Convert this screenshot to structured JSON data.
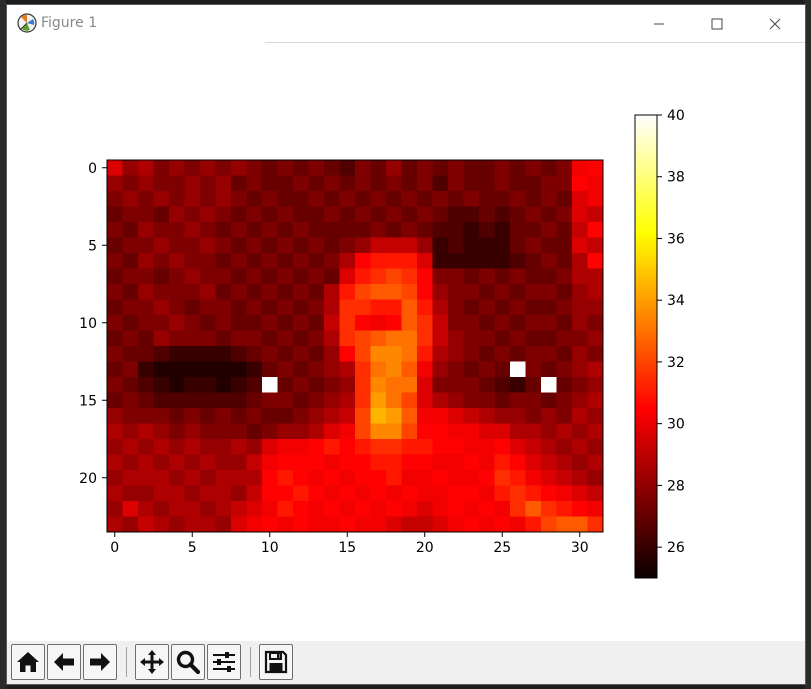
{
  "window": {
    "title": "Figure 1"
  },
  "toolbar": {
    "buttons": [
      {
        "name": "home-button",
        "icon": "home-icon"
      },
      {
        "name": "back-button",
        "icon": "arrow-left-icon"
      },
      {
        "name": "forward-button",
        "icon": "arrow-right-icon"
      },
      {
        "name": "pan-button",
        "icon": "move-icon"
      },
      {
        "name": "zoom-button",
        "icon": "magnifier-icon"
      },
      {
        "name": "configure-subplots-button",
        "icon": "sliders-icon"
      },
      {
        "name": "save-button",
        "icon": "floppy-icon"
      }
    ]
  },
  "chart_data": {
    "type": "heatmap",
    "colormap": "hot",
    "rows": 24,
    "cols": 32,
    "xticks": [
      0,
      5,
      10,
      15,
      20,
      25,
      30
    ],
    "yticks": [
      0,
      5,
      10,
      15,
      20
    ],
    "colorbar": {
      "ticks": [
        26,
        28,
        30,
        32,
        34,
        36,
        38,
        40
      ],
      "vmin": 25,
      "vmax": 40
    },
    "values": [
      [
        29.5,
        28,
        28.5,
        27.5,
        28,
        27.5,
        28,
        27.5,
        28,
        27.5,
        27,
        27.5,
        27,
        27.5,
        27,
        26.5,
        27.5,
        27,
        28,
        27,
        27.5,
        27,
        27.5,
        27,
        27,
        27.5,
        27,
        27.5,
        27,
        27.5,
        30,
        30.5
      ],
      [
        28,
        27.5,
        28,
        27.5,
        27.5,
        28,
        27.5,
        28,
        27,
        27.5,
        27,
        27,
        27.5,
        27,
        27.5,
        27,
        27.5,
        27,
        27.5,
        27,
        27.5,
        26.5,
        27.5,
        27,
        27,
        27.5,
        27,
        27,
        27.5,
        27.5,
        30.5,
        30
      ],
      [
        27.5,
        28,
        27.5,
        28,
        27.5,
        28,
        27.5,
        28,
        27.5,
        27,
        27.5,
        27,
        27,
        27.5,
        27,
        27.5,
        27,
        27.5,
        27,
        27.5,
        27,
        27.5,
        27,
        27.5,
        27,
        27,
        27.5,
        27,
        27.5,
        27,
        29.5,
        30
      ],
      [
        27,
        27.5,
        27.5,
        27,
        28,
        27.5,
        28,
        27.5,
        27,
        27.5,
        27,
        27.5,
        27,
        27,
        27.5,
        27,
        27.5,
        27,
        27.5,
        27,
        27.5,
        27,
        26.5,
        26.5,
        27,
        26.5,
        27,
        27.5,
        27,
        27.5,
        29.5,
        29
      ],
      [
        27.5,
        27,
        28,
        27.5,
        27.5,
        28,
        27.5,
        27,
        27.5,
        27,
        27.5,
        27,
        27.5,
        27,
        27,
        27,
        27,
        27.5,
        27,
        27.5,
        27,
        26.5,
        26.5,
        26,
        26.5,
        26,
        27,
        27,
        27.5,
        27,
        29,
        30.5
      ],
      [
        27,
        27.5,
        27.5,
        28,
        27.5,
        27.5,
        28,
        27.5,
        27,
        27.5,
        27,
        27.5,
        27,
        27.5,
        27,
        27.5,
        28,
        29,
        29,
        29,
        28,
        26,
        26.5,
        26,
        26,
        26,
        27,
        27.5,
        27,
        27,
        29.5,
        29
      ],
      [
        27.5,
        27,
        28,
        27.5,
        28,
        27.5,
        27.5,
        27,
        27.5,
        27,
        27.5,
        27,
        27.5,
        27,
        27.5,
        28.5,
        30.5,
        31,
        31,
        31,
        29.5,
        26,
        26,
        26,
        26,
        26,
        26.5,
        27,
        27.5,
        27,
        28.5,
        30.5
      ],
      [
        27,
        27.5,
        27.5,
        27,
        27.5,
        28,
        27.5,
        27.5,
        27,
        27.5,
        27,
        27.5,
        27,
        27.5,
        27,
        29.5,
        31,
        31.5,
        32,
        31.5,
        30.5,
        27.5,
        27.5,
        27,
        27.5,
        27,
        27.5,
        27,
        27,
        27.5,
        28.5,
        28.5
      ],
      [
        27.5,
        27,
        28,
        27.5,
        27.5,
        27.5,
        28,
        27,
        27.5,
        27,
        27.5,
        27,
        27.5,
        27,
        28.5,
        31,
        32,
        32.5,
        32.5,
        32,
        30.5,
        28,
        27.5,
        27.5,
        27,
        27.5,
        27,
        27.5,
        27.5,
        27,
        28,
        28.5
      ],
      [
        27,
        27.5,
        27.5,
        28,
        27.5,
        27,
        27.5,
        27.5,
        27,
        27.5,
        27,
        27.5,
        27,
        27.5,
        28.5,
        31.5,
        31.5,
        31,
        31,
        32.5,
        31,
        28.5,
        27.5,
        27,
        27.5,
        27,
        27.5,
        27,
        27,
        27.5,
        28,
        28
      ],
      [
        27.5,
        27,
        27.5,
        27.5,
        28,
        27.5,
        27,
        27.5,
        27,
        27,
        27.5,
        27,
        27.5,
        27,
        29,
        31.5,
        30.5,
        30,
        30.5,
        32.5,
        31.5,
        29,
        27.5,
        27.5,
        27,
        27.5,
        27,
        27.5,
        27.5,
        27,
        28,
        27.5
      ],
      [
        27,
        27.5,
        27,
        28,
        27.5,
        27.5,
        27.5,
        27,
        27.5,
        27.5,
        27,
        27.5,
        27,
        27.5,
        28.5,
        31.5,
        32,
        32.5,
        33,
        33,
        31.5,
        29,
        28,
        27.5,
        27.5,
        27,
        27.5,
        27,
        27,
        27.5,
        27.5,
        28
      ],
      [
        27.5,
        27,
        27,
        26.5,
        26,
        26,
        26,
        26,
        26.5,
        27,
        27.5,
        27,
        27.5,
        27,
        28,
        30.5,
        32,
        33.5,
        33.5,
        33,
        31,
        28.5,
        28,
        27.5,
        27,
        27.5,
        27,
        27.5,
        27.5,
        27,
        28,
        27.5
      ],
      [
        27,
        27.5,
        26,
        25.5,
        25.5,
        25.5,
        25.5,
        25.5,
        25.5,
        26,
        27,
        27.5,
        27,
        27.5,
        28,
        28.5,
        31.5,
        33,
        33.5,
        32.5,
        30,
        28,
        27.5,
        27,
        27.5,
        27,
        40,
        27.5,
        27,
        27.5,
        28,
        28.5
      ],
      [
        27.5,
        27,
        26.5,
        26,
        25.5,
        26,
        26,
        25.5,
        26,
        26.5,
        40,
        27,
        27.5,
        27,
        27.5,
        28,
        31.5,
        33.5,
        33,
        33,
        29.5,
        27.5,
        27.5,
        27.5,
        27,
        26.5,
        26,
        27,
        40,
        27,
        27.5,
        28
      ],
      [
        27,
        27.5,
        27,
        26.5,
        26.5,
        26.5,
        26.5,
        26.5,
        26.5,
        27,
        27.5,
        27.5,
        27,
        27.5,
        28,
        28.5,
        31.5,
        34,
        33,
        32,
        29.5,
        28.5,
        28,
        27.5,
        27.5,
        27,
        27.5,
        27.5,
        27,
        27.5,
        28,
        28.5
      ],
      [
        28,
        27.5,
        27.5,
        27.5,
        27,
        27.5,
        27,
        27.5,
        27,
        27.5,
        27,
        27,
        27.5,
        28,
        28.5,
        29,
        32,
        34.5,
        34,
        32.5,
        30,
        30,
        29.5,
        29,
        28.5,
        28,
        28,
        27.5,
        28,
        27.5,
        28.5,
        28
      ],
      [
        28.5,
        28,
        28.5,
        28,
        27.5,
        28,
        27.5,
        27.5,
        27.5,
        27,
        27.5,
        28,
        28,
        28.5,
        29.5,
        30,
        32,
        33.5,
        33.5,
        32,
        30.5,
        30.5,
        30,
        30,
        29.5,
        29.5,
        28.5,
        28.5,
        28,
        28.5,
        28,
        28.5
      ],
      [
        28,
        28.5,
        28,
        28.5,
        28,
        28.5,
        28,
        28,
        28.5,
        28,
        29.5,
        30,
        30,
        30.5,
        31,
        30.5,
        31,
        31.5,
        31.5,
        31,
        31,
        30.5,
        30.5,
        30,
        30,
        30.5,
        29.5,
        29,
        28.5,
        28,
        28.5,
        28
      ],
      [
        28.5,
        28,
        28.5,
        28,
        28.5,
        28,
        28.5,
        28,
        28,
        29,
        30,
        30.5,
        30.5,
        30.5,
        30,
        30.5,
        30.5,
        31,
        31,
        30.5,
        30.5,
        30,
        30,
        30.5,
        30,
        31,
        30.5,
        29.5,
        29,
        28.5,
        28,
        28.5
      ],
      [
        28,
        28.5,
        28.5,
        28.5,
        28,
        28.5,
        28,
        28.5,
        28.5,
        28.5,
        30.5,
        31,
        30.5,
        30,
        30.5,
        30,
        30.5,
        30.5,
        31,
        30,
        30,
        30.5,
        30,
        30,
        30.5,
        31.5,
        31,
        30,
        29.5,
        29,
        28.5,
        28
      ],
      [
        28.5,
        28,
        28,
        28.5,
        28.5,
        28,
        28.5,
        28.5,
        28,
        29,
        30.5,
        30.5,
        31,
        30.5,
        30,
        30.5,
        30,
        30.5,
        30,
        30.5,
        30,
        30,
        30.5,
        30.5,
        30,
        31,
        31.5,
        31,
        30.5,
        30,
        29.5,
        29
      ],
      [
        28,
        29.5,
        28.5,
        28,
        28.5,
        28.5,
        28,
        28.5,
        29,
        29.5,
        30,
        31,
        30.5,
        30,
        30.5,
        30,
        30.5,
        30,
        30.5,
        30,
        29.5,
        30,
        30.5,
        30,
        30.5,
        30,
        31.5,
        32.5,
        31.5,
        31,
        30.5,
        30
      ],
      [
        28.5,
        28,
        29,
        28.5,
        28,
        28.5,
        28.5,
        28,
        29.5,
        30,
        30.5,
        30,
        30.5,
        30,
        30,
        30.5,
        30,
        30,
        29.5,
        29,
        29,
        29.5,
        30,
        30.5,
        30,
        30.5,
        30,
        31,
        32,
        32.5,
        32.5,
        31.5
      ]
    ]
  }
}
